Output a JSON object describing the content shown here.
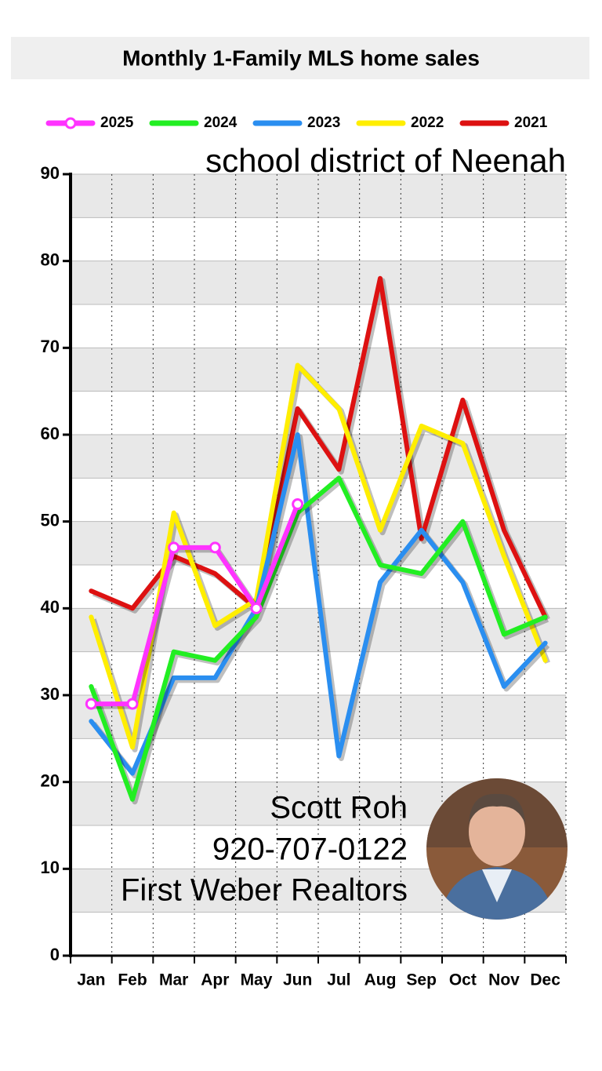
{
  "chart_data": {
    "type": "line",
    "title": "Monthly  1-Family MLS home sales",
    "subtitle": "school district of Neenah",
    "annotations": [
      "Scott Roh",
      "920-707-0122",
      "First Weber Realtors"
    ],
    "categories": [
      "Jan",
      "Feb",
      "Mar",
      "Apr",
      "May",
      "Jun",
      "Jul",
      "Aug",
      "Sep",
      "Oct",
      "Nov",
      "Dec"
    ],
    "series": [
      {
        "name": "2025",
        "color": "#ff33ff",
        "values": [
          29,
          29,
          47,
          47,
          40,
          52,
          null,
          null,
          null,
          null,
          null,
          null
        ]
      },
      {
        "name": "2024",
        "color": "#22ee22",
        "values": [
          31,
          18,
          35,
          34,
          39,
          51,
          55,
          45,
          44,
          50,
          37,
          39
        ]
      },
      {
        "name": "2023",
        "color": "#2a8ef0",
        "values": [
          27,
          21,
          32,
          32,
          40,
          60,
          23,
          43,
          49,
          43,
          31,
          36
        ]
      },
      {
        "name": "2022",
        "color": "#ffee00",
        "values": [
          39,
          24,
          51,
          38,
          41,
          68,
          63,
          49,
          61,
          59,
          46,
          34
        ]
      },
      {
        "name": "2021",
        "color": "#dd1111",
        "values": [
          42,
          40,
          46,
          44,
          40,
          63,
          56,
          78,
          48,
          64,
          49,
          39
        ]
      }
    ],
    "ylim": [
      0,
      90
    ],
    "yticks": [
      0,
      10,
      20,
      30,
      40,
      50,
      60,
      70,
      80,
      90
    ],
    "grid": true
  }
}
